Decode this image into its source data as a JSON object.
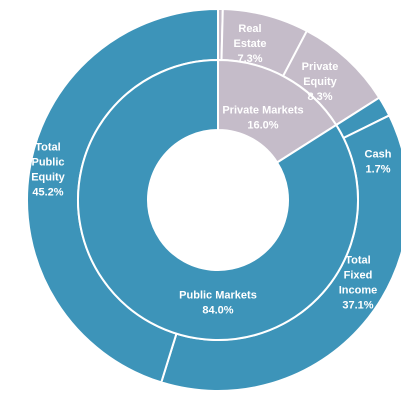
{
  "chart_data": {
    "type": "sunburst",
    "inner": {
      "categories": [
        "Private Markets",
        "Public Markets"
      ],
      "values": [
        16.0,
        84.0
      ],
      "value_labels": [
        "16.0%",
        "84.0%"
      ],
      "colors": [
        "#c5bcc9",
        "#3d94b9"
      ]
    },
    "outer": {
      "categories": [
        null,
        "Real Estate",
        "Private Equity",
        "Cash",
        "Total Fixed Income",
        "Total Public Equity"
      ],
      "values": [
        0.4,
        7.3,
        8.3,
        1.7,
        37.1,
        45.2
      ],
      "value_labels": [
        null,
        "7.3%",
        "8.3%",
        "1.7%",
        "37.1%",
        "45.2%"
      ],
      "colors": [
        "#c5bcc9",
        "#c5bcc9",
        "#c5bcc9",
        "#3d94b9",
        "#3d94b9",
        "#3d94b9"
      ]
    }
  }
}
